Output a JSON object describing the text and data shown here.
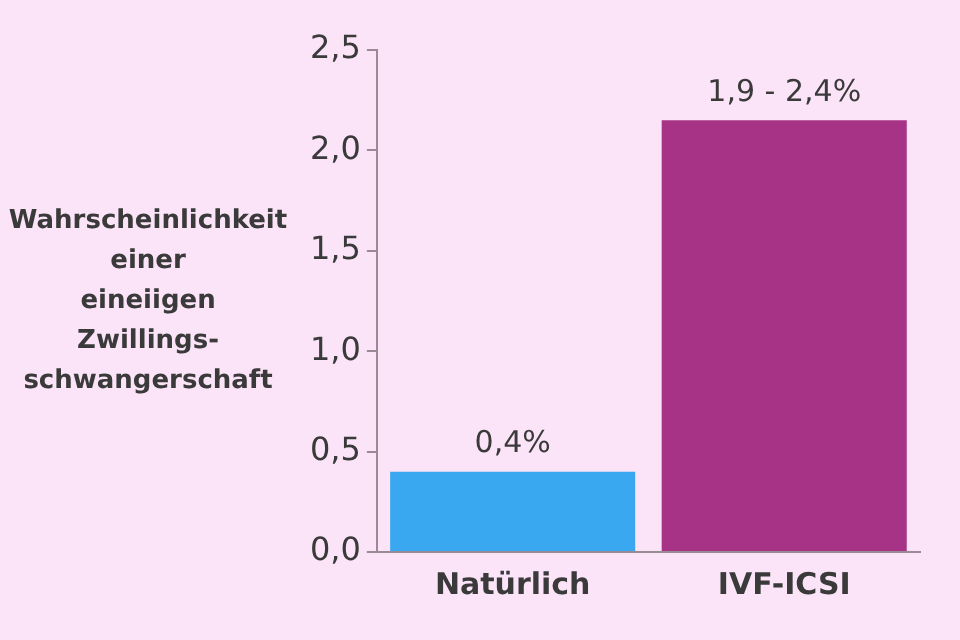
{
  "chart_data": {
    "type": "bar",
    "ylabel": "Wahrscheinlichkeit einer eineiigen Zwillings-schwangerschaft",
    "categories": [
      "Natürlich",
      "IVF-ICSI"
    ],
    "values": [
      0.4,
      2.15
    ],
    "colors": [
      "#3aa8f0",
      "#a63385"
    ],
    "value_labels": [
      "0,4%",
      null
    ],
    "annotations": [
      {
        "text": "1,9 - 2,4%",
        "x": "IVF-ICSI",
        "y": 2.15
      }
    ],
    "ylim": [
      0,
      2.5
    ],
    "yticks": [
      {
        "value": 0,
        "label": "0,0"
      },
      {
        "value": 0.5,
        "label": "0,5"
      },
      {
        "value": 1,
        "label": "1,0"
      },
      {
        "value": 1.5,
        "label": "1,5"
      },
      {
        "value": 2,
        "label": "2,0"
      },
      {
        "value": 2.5,
        "label": "2,5"
      }
    ],
    "grid": false,
    "legend": false
  }
}
